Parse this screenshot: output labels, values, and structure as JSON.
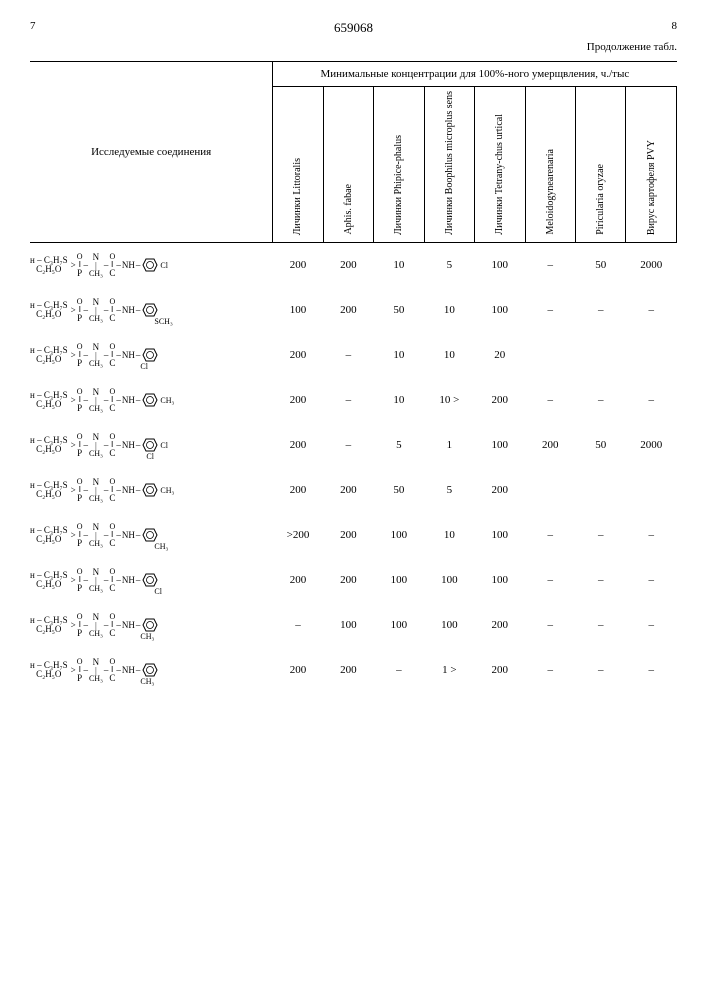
{
  "header": {
    "page_left": "7",
    "doc_number": "659068",
    "page_right": "8",
    "continuation": "Продолжение табл."
  },
  "table": {
    "col_compounds": "Исследуемые соединения",
    "col_header_top": "Минимальные концентрации для 100%-ного умерщвления, ч./тыс",
    "cols": [
      "Личинки Littoralis",
      "Aphis. fabae",
      "Личинки Phipice-phalus",
      "Личинки Boophilus microplus sens",
      "Личинки Tetrany-chus urtical",
      "Meloidogynearenaria",
      "Piricularia oryzae",
      "Вирус картофеля PVY"
    ],
    "rows": [
      {
        "subst": "Cl (para)",
        "vals": [
          "200",
          "200",
          "10",
          "5",
          "100",
          "–",
          "50",
          "2000"
        ]
      },
      {
        "subst": "SCH₃ (meta)",
        "vals": [
          "100",
          "200",
          "50",
          "10",
          "100",
          "–",
          "–",
          "–"
        ]
      },
      {
        "subst": "Cl (ortho)",
        "vals": [
          "200",
          "–",
          "10",
          "10",
          "20",
          "",
          "",
          ""
        ]
      },
      {
        "subst": "CH₃ (para)",
        "vals": [
          "200",
          "–",
          "10",
          "10 >",
          "200",
          "–",
          "–",
          "–"
        ]
      },
      {
        "subst": "Cl,Cl (3,4)",
        "vals": [
          "200",
          "–",
          "5",
          "1",
          "100",
          "200",
          "50",
          "2000"
        ]
      },
      {
        "subst": "CH₃ (para)",
        "vals": [
          "200",
          "200",
          "50",
          "5",
          "200",
          "",
          "",
          ""
        ]
      },
      {
        "subst": "CH₃ (meta)",
        "vals": [
          ">200",
          "200",
          "100",
          "10",
          "100",
          "–",
          "–",
          "–"
        ]
      },
      {
        "subst": "Cl (meta)",
        "vals": [
          "200",
          "200",
          "100",
          "100",
          "100",
          "–",
          "–",
          "–"
        ]
      },
      {
        "subst": "CH₃ (ortho)",
        "vals": [
          "–",
          "100",
          "100",
          "100",
          "200",
          "–",
          "–",
          "–"
        ]
      },
      {
        "subst": "CH₃ (ortho)",
        "vals": [
          "200",
          "200",
          "–",
          "1 >",
          "200",
          "–",
          "–",
          "–"
        ]
      }
    ]
  },
  "chem_common": {
    "r1_top": "н – C₃H₇S",
    "r1_bot": "C₂H₅O",
    "p_double_o": "O",
    "c_double_o": "O",
    "n_sub": "CH₃",
    "nh": "NH"
  },
  "colors": {
    "text": "#000000",
    "background": "#ffffff",
    "border": "#000000"
  },
  "fonts": {
    "body_pt": 12,
    "header_pt": 11,
    "col_header_pt": 10,
    "chem_pt": 9
  }
}
